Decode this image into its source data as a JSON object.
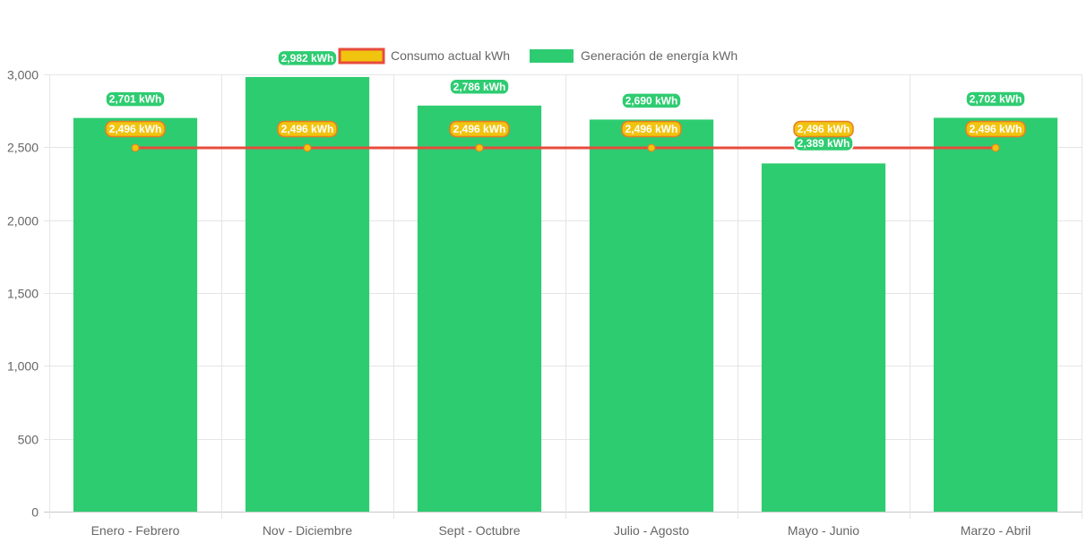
{
  "chart_data": {
    "type": "bar",
    "title": "",
    "xlabel": "",
    "ylabel": "",
    "ylim": [
      0,
      3000
    ],
    "y_ticks": [
      0,
      500,
      1000,
      1500,
      2000,
      2500,
      3000
    ],
    "y_tick_labels": [
      "0",
      "500",
      "1,000",
      "1,500",
      "2,000",
      "2,500",
      "3,000"
    ],
    "categories": [
      "Enero - Febrero",
      "Nov - Diciembre",
      "Sept - Octubre",
      "Julio - Agosto",
      "Mayo - Junio",
      "Marzo - Abril"
    ],
    "grid": true,
    "legend_position": "top",
    "series": [
      {
        "name": "Consumo actual kWh",
        "type": "line",
        "values": [
          2496,
          2496,
          2496,
          2496,
          2496,
          2496
        ],
        "labels": [
          "2,496 kWh",
          "2,496 kWh",
          "2,496 kWh",
          "2,496 kWh",
          "2,496 kWh",
          "2,496 kWh"
        ],
        "color": "#e74c3c",
        "point_color": "#f1c40f"
      },
      {
        "name": "Generación de energía kWh",
        "type": "bar",
        "values": [
          2701,
          2982,
          2786,
          2690,
          2389,
          2702
        ],
        "labels": [
          "2,701 kWh",
          "2,982 kWh",
          "2,786 kWh",
          "2,690 kWh",
          "2,389 kWh",
          "2,702 kWh"
        ],
        "color": "#2ecc71"
      }
    ]
  }
}
